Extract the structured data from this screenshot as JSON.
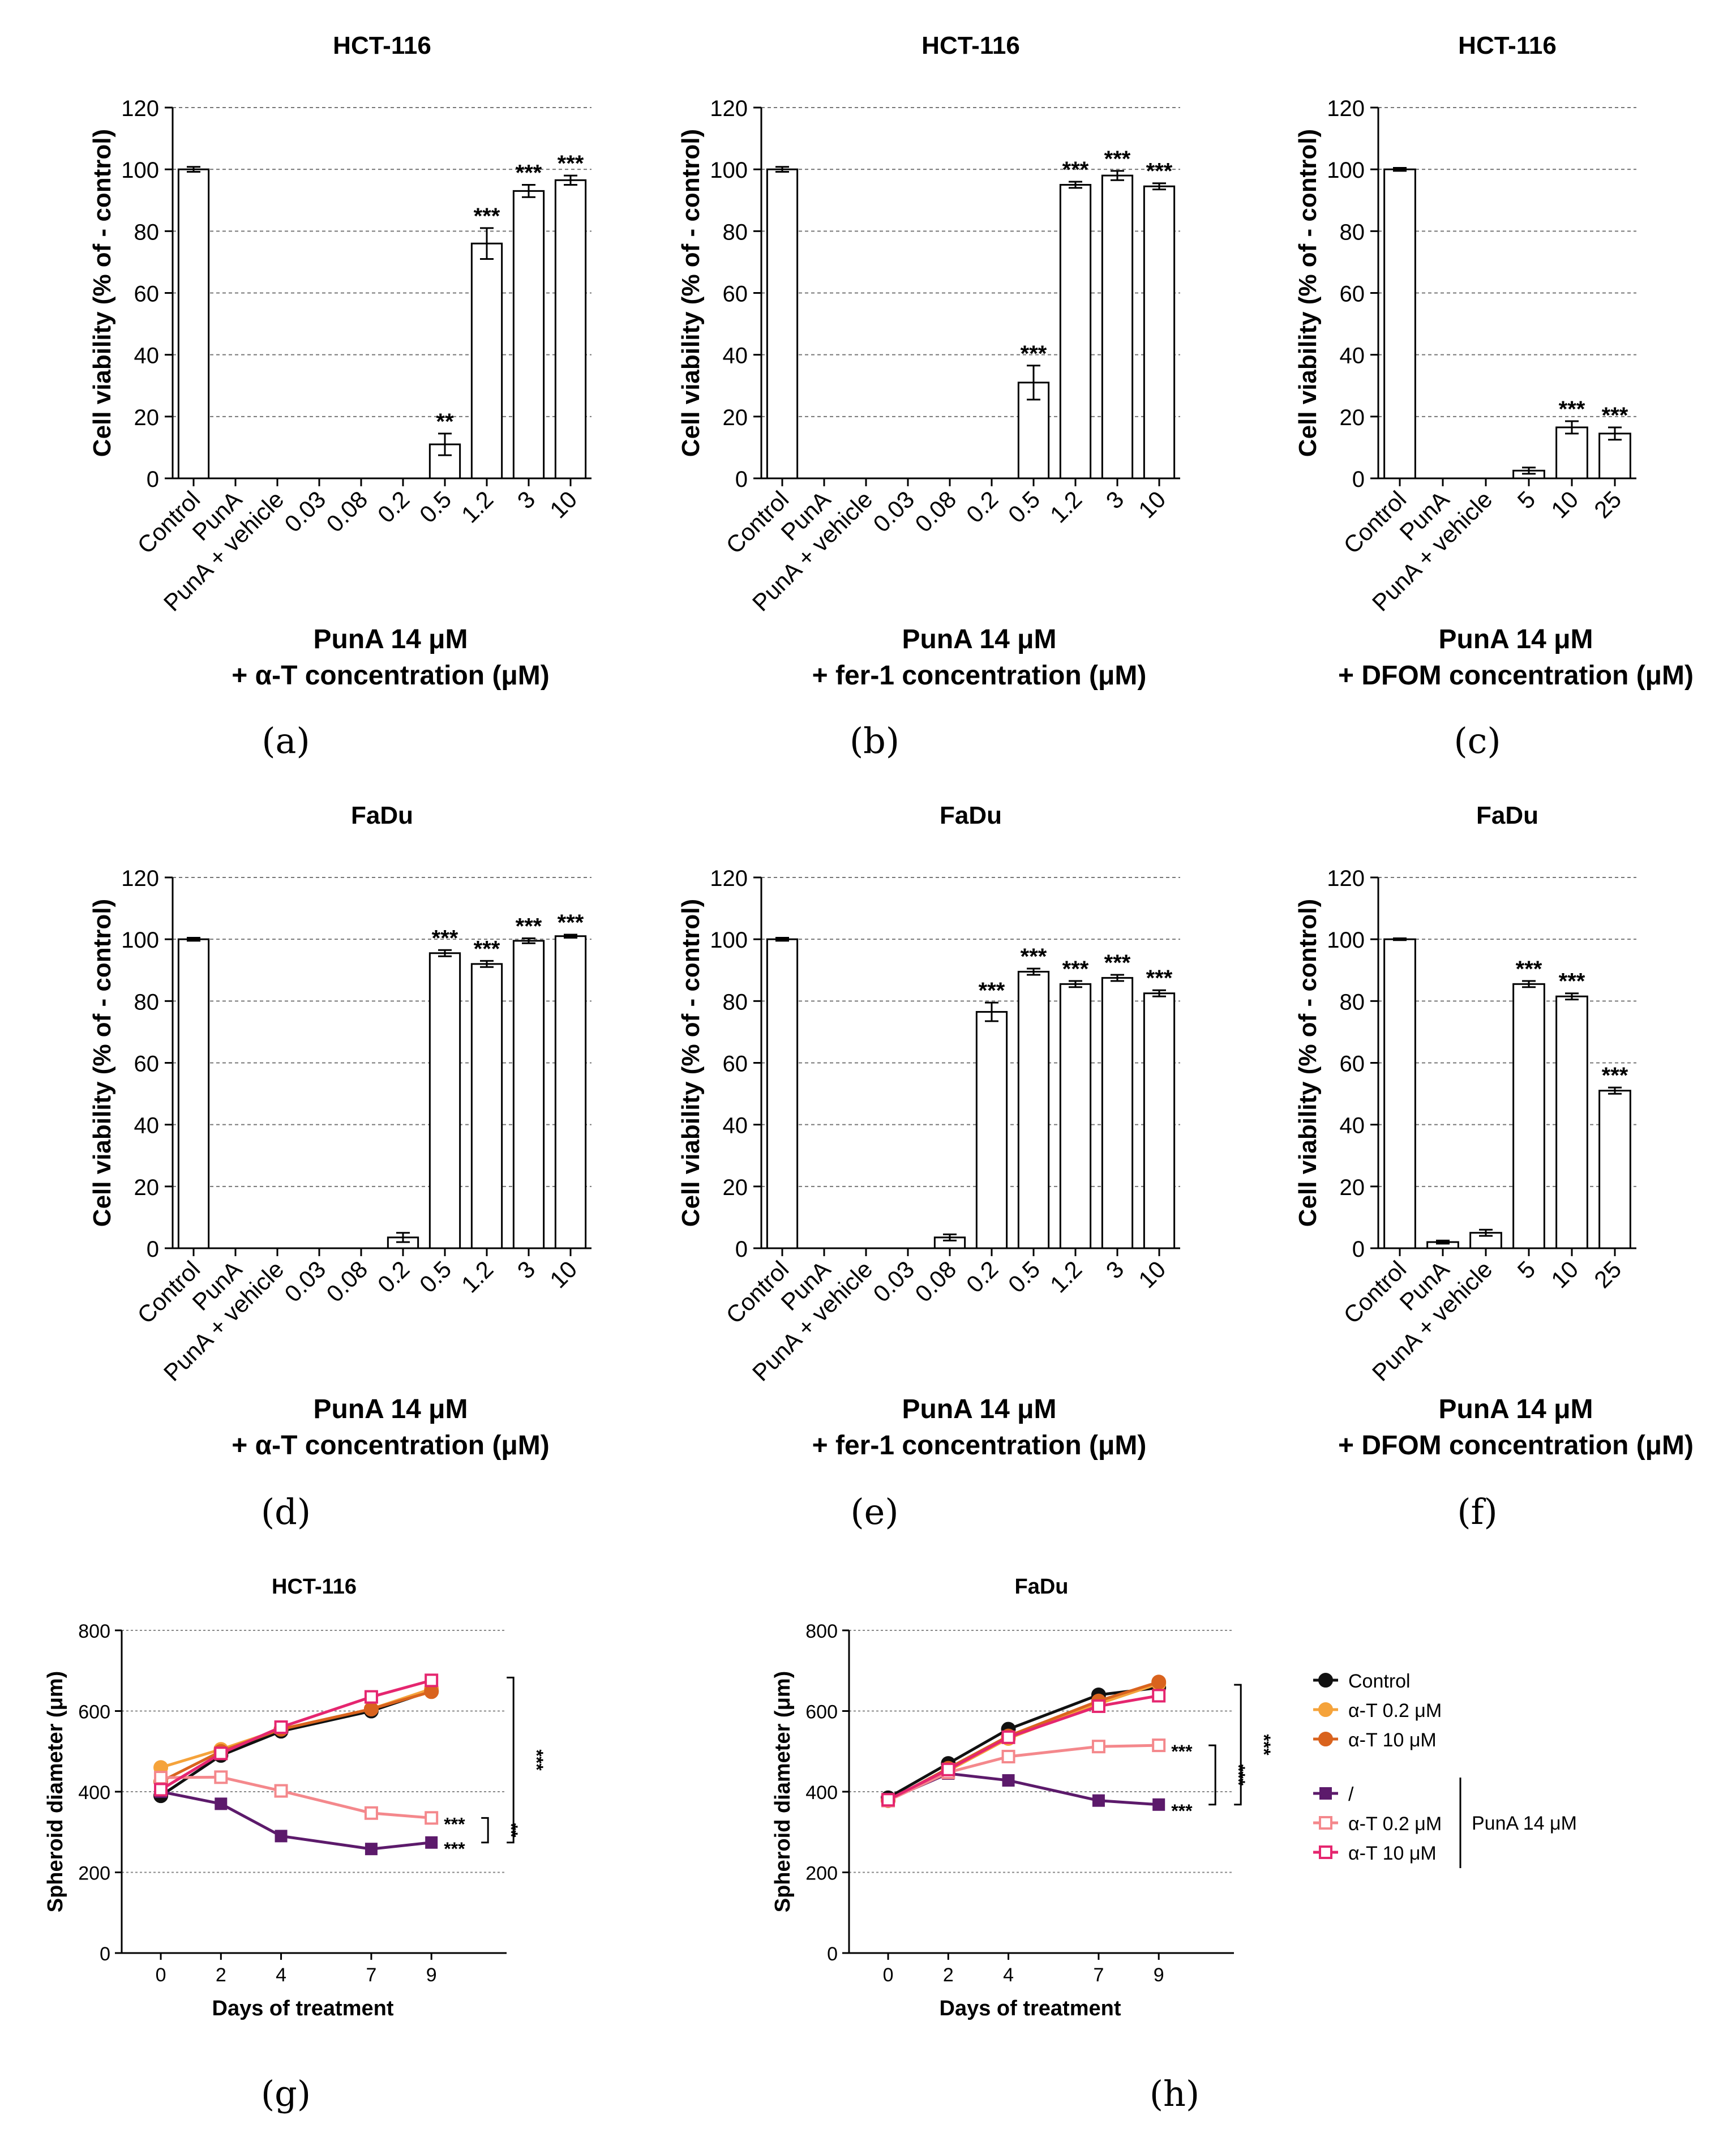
{
  "figure": {
    "panel_labels": [
      "(a)",
      "(b)",
      "(c)",
      "(d)",
      "(e)",
      "(f)",
      "(g)",
      "(h)"
    ]
  },
  "chart_data": [
    {
      "id": "a",
      "type": "bar",
      "title": "HCT-116",
      "ylabel": "Cell viability (% of - control)",
      "xlabel_lines": [
        "PunA 14 μM",
        "+ α-T concentration (μM)"
      ],
      "ylim": [
        0,
        120
      ],
      "yticks": [
        0,
        20,
        40,
        60,
        80,
        100,
        120
      ],
      "grid": true,
      "categories": [
        "Control",
        "PunA",
        "PunA + vehicle",
        "0.03",
        "0.08",
        "0.2",
        "0.5",
        "1.2",
        "3",
        "10"
      ],
      "values": [
        100,
        0,
        0,
        0,
        0,
        0,
        11,
        76,
        93,
        96.5
      ],
      "errors": [
        0.8,
        0,
        0,
        0,
        0,
        0,
        3.5,
        5,
        2,
        1.5
      ],
      "significance": [
        "",
        "",
        "",
        "",
        "",
        "",
        "**",
        "***",
        "***",
        "***"
      ]
    },
    {
      "id": "b",
      "type": "bar",
      "title": "HCT-116",
      "ylabel": "Cell viability (% of - control)",
      "xlabel_lines": [
        "PunA 14 μM",
        "+ fer-1 concentration (μM)"
      ],
      "ylim": [
        0,
        120
      ],
      "yticks": [
        0,
        20,
        40,
        60,
        80,
        100,
        120
      ],
      "grid": true,
      "categories": [
        "Control",
        "PunA",
        "PunA + vehicle",
        "0.03",
        "0.08",
        "0.2",
        "0.5",
        "1.2",
        "3",
        "10"
      ],
      "values": [
        100,
        0,
        0,
        0,
        0,
        0,
        31,
        95,
        98,
        94.5
      ],
      "errors": [
        0.8,
        0,
        0,
        0,
        0,
        0,
        5.5,
        1,
        1.5,
        1
      ],
      "significance": [
        "",
        "",
        "",
        "",
        "",
        "",
        "***",
        "***",
        "***",
        "***"
      ]
    },
    {
      "id": "c",
      "type": "bar",
      "title": "HCT-116",
      "ylabel": "Cell viability (% of - control)",
      "xlabel_lines": [
        "PunA 14 μM",
        "+ DFOM concentration (μM)"
      ],
      "ylim": [
        0,
        120
      ],
      "yticks": [
        0,
        20,
        40,
        60,
        80,
        100,
        120
      ],
      "grid": true,
      "categories": [
        "Control",
        "PunA",
        "PunA + vehicle",
        "5",
        "10",
        "25"
      ],
      "values": [
        100,
        0,
        0,
        2.5,
        16.5,
        14.5
      ],
      "errors": [
        0.5,
        0,
        0,
        1,
        2,
        2
      ],
      "significance": [
        "",
        "",
        "",
        "",
        "***",
        "***"
      ]
    },
    {
      "id": "d",
      "type": "bar",
      "title": "FaDu",
      "ylabel": "Cell viability (% of - control)",
      "xlabel_lines": [
        "PunA 14 μM",
        "+ α-T concentration (μM)"
      ],
      "ylim": [
        0,
        120
      ],
      "yticks": [
        0,
        20,
        40,
        60,
        80,
        100,
        120
      ],
      "grid": true,
      "categories": [
        "Control",
        "PunA",
        "PunA + vehicle",
        "0.03",
        "0.08",
        "0.2",
        "0.5",
        "1.2",
        "3",
        "10"
      ],
      "values": [
        100,
        0,
        0,
        0,
        0,
        3.5,
        95.5,
        92,
        99.5,
        101
      ],
      "errors": [
        0.5,
        0,
        0,
        0,
        0,
        1.5,
        1,
        1,
        0.8,
        0.5
      ],
      "significance": [
        "",
        "",
        "",
        "",
        "",
        "",
        "***",
        "***",
        "***",
        "***"
      ]
    },
    {
      "id": "e",
      "type": "bar",
      "title": "FaDu",
      "ylabel": "Cell viability (% of - control)",
      "xlabel_lines": [
        "PunA 14 μM",
        "+ fer-1 concentration (μM)"
      ],
      "ylim": [
        0,
        120
      ],
      "yticks": [
        0,
        20,
        40,
        60,
        80,
        100,
        120
      ],
      "grid": true,
      "categories": [
        "Control",
        "PunA",
        "PunA + vehicle",
        "0.03",
        "0.08",
        "0.2",
        "0.5",
        "1.2",
        "3",
        "10"
      ],
      "values": [
        100,
        0,
        0,
        0,
        3.5,
        76.5,
        89.5,
        85.5,
        87.5,
        82.5
      ],
      "errors": [
        0.5,
        0,
        0,
        0,
        1,
        3,
        1,
        1,
        1,
        1
      ],
      "significance": [
        "",
        "",
        "",
        "",
        "",
        "***",
        "***",
        "***",
        "***",
        "***"
      ]
    },
    {
      "id": "f",
      "type": "bar",
      "title": "FaDu",
      "ylabel": "Cell viability (% of - control)",
      "xlabel_lines": [
        "PunA 14 μM",
        "+ DFOM concentration (μM)"
      ],
      "ylim": [
        0,
        120
      ],
      "yticks": [
        0,
        20,
        40,
        60,
        80,
        100,
        120
      ],
      "grid": true,
      "categories": [
        "Control",
        "PunA",
        "PunA + vehicle",
        "5",
        "10",
        "25"
      ],
      "values": [
        100,
        2,
        5,
        85.5,
        81.5,
        51
      ],
      "errors": [
        0.3,
        0.5,
        1,
        1,
        1,
        1
      ],
      "significance": [
        "",
        "",
        "",
        "***",
        "***",
        "***"
      ]
    },
    {
      "id": "g",
      "type": "line",
      "title": "HCT-116",
      "xlabel": "Days of treatment",
      "ylabel": "Spheroid diameter (μm)",
      "x": [
        0,
        2,
        4,
        7,
        9
      ],
      "xlim": [
        -1.3,
        11.5
      ],
      "ylim": [
        0,
        800
      ],
      "yticks": [
        0,
        200,
        400,
        600,
        800
      ],
      "grid": true,
      "series": [
        {
          "name": "Control",
          "color": "#111111",
          "marker": "circle",
          "values": [
            390,
            490,
            550,
            600,
            650
          ]
        },
        {
          "name": "α-T 0.2 μM",
          "color": "#f5a33b",
          "marker": "circle",
          "values": [
            460,
            505,
            555,
            605,
            655
          ]
        },
        {
          "name": "α-T 10 μM",
          "color": "#d9631e",
          "marker": "circle",
          "values": [
            425,
            500,
            555,
            605,
            648
          ]
        },
        {
          "name": "/",
          "color": "#5c1a6b",
          "marker": "square",
          "values": [
            400,
            370,
            290,
            258,
            274
          ]
        },
        {
          "name": "α-T 0.2 μM",
          "color": "#f4888c",
          "marker": "open-square",
          "values": [
            435,
            436,
            402,
            347,
            335
          ]
        },
        {
          "name": "α-T 10 μM",
          "color": "#e5266f",
          "marker": "open-square",
          "values": [
            405,
            495,
            560,
            635,
            676
          ]
        }
      ],
      "annotations": [
        {
          "label": "***",
          "target": "α-T 0.2 μM (PunA 14 μM)"
        },
        {
          "label": "***",
          "target": "/"
        },
        {
          "label": "**",
          "bracket": [
            "α-T 0.2 μM",
            "/"
          ]
        },
        {
          "label": "***",
          "bracket": [
            "α-T 10 μM",
            "/"
          ]
        }
      ]
    },
    {
      "id": "h",
      "type": "line",
      "title": "FaDu",
      "xlabel": "Days of treatment",
      "ylabel": "Spheroid diameter (μm)",
      "x": [
        0,
        2,
        4,
        7,
        9
      ],
      "xlim": [
        -1.3,
        11.5
      ],
      "ylim": [
        0,
        800
      ],
      "yticks": [
        0,
        200,
        400,
        600,
        800
      ],
      "grid": true,
      "series": [
        {
          "name": "Control",
          "color": "#111111",
          "marker": "circle",
          "values": [
            385,
            470,
            555,
            640,
            658
          ]
        },
        {
          "name": "α-T 0.2 μM",
          "color": "#f5a33b",
          "marker": "circle",
          "values": [
            378,
            452,
            532,
            618,
            668
          ]
        },
        {
          "name": "α-T 10 μM",
          "color": "#d9631e",
          "marker": "circle",
          "values": [
            378,
            458,
            538,
            625,
            672
          ]
        },
        {
          "name": "/",
          "color": "#5c1a6b",
          "marker": "square",
          "values": [
            380,
            445,
            428,
            378,
            368
          ]
        },
        {
          "name": "α-T 0.2 μM",
          "color": "#f4888c",
          "marker": "open-square",
          "values": [
            378,
            448,
            487,
            512,
            515
          ]
        },
        {
          "name": "α-T 10 μM",
          "color": "#e5266f",
          "marker": "open-square",
          "values": [
            380,
            455,
            535,
            612,
            638
          ]
        }
      ],
      "annotations": [
        {
          "label": "***",
          "target": "α-T 0.2 μM (PunA 14 μM)"
        },
        {
          "label": "***",
          "target": "/"
        },
        {
          "label": "***",
          "bracket": [
            "α-T 0.2 μM",
            "/"
          ]
        },
        {
          "label": "***",
          "bracket": [
            "α-T 10 μM",
            "/"
          ]
        }
      ],
      "legend": {
        "placement": "right",
        "group_label": "PunA 14 μM",
        "items": [
          "Control",
          "α-T 0.2 μM",
          "α-T 10 μM",
          "/",
          "α-T 0.2 μM",
          "α-T 10 μM"
        ]
      }
    }
  ]
}
